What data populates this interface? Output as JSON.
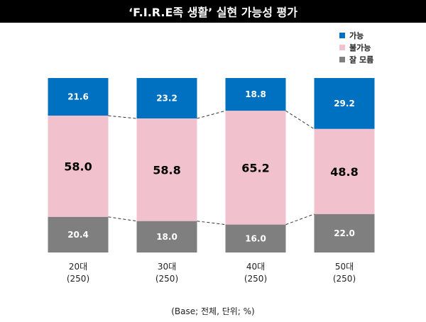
{
  "chart_data": {
    "type": "bar",
    "stacked": true,
    "normalized": true,
    "title": "‘F.I.R.E족 생활’ 실현 가능성 평가",
    "categories": [
      "20대",
      "30대",
      "40대",
      "50대"
    ],
    "category_bases": [
      "(250)",
      "(250)",
      "(250)",
      "(250)"
    ],
    "series": [
      {
        "name": "가능",
        "values": [
          21.6,
          23.2,
          18.8,
          29.2
        ],
        "color": "#0070c0"
      },
      {
        "name": "불가능",
        "values": [
          58.0,
          58.8,
          65.2,
          48.8
        ],
        "color": "#f2c1ce"
      },
      {
        "name": "잘 모름",
        "values": [
          20.4,
          18.0,
          16.0,
          22.0
        ],
        "color": "#7f7f7f"
      }
    ],
    "stack_order_top_to_bottom": [
      "가능",
      "불가능",
      "잘 모름"
    ],
    "legend_position": "top-right",
    "connector_lines": "dashed",
    "grid": false,
    "ylim": [
      0,
      100
    ],
    "note": "(Base; 전체, 단위; %)"
  }
}
